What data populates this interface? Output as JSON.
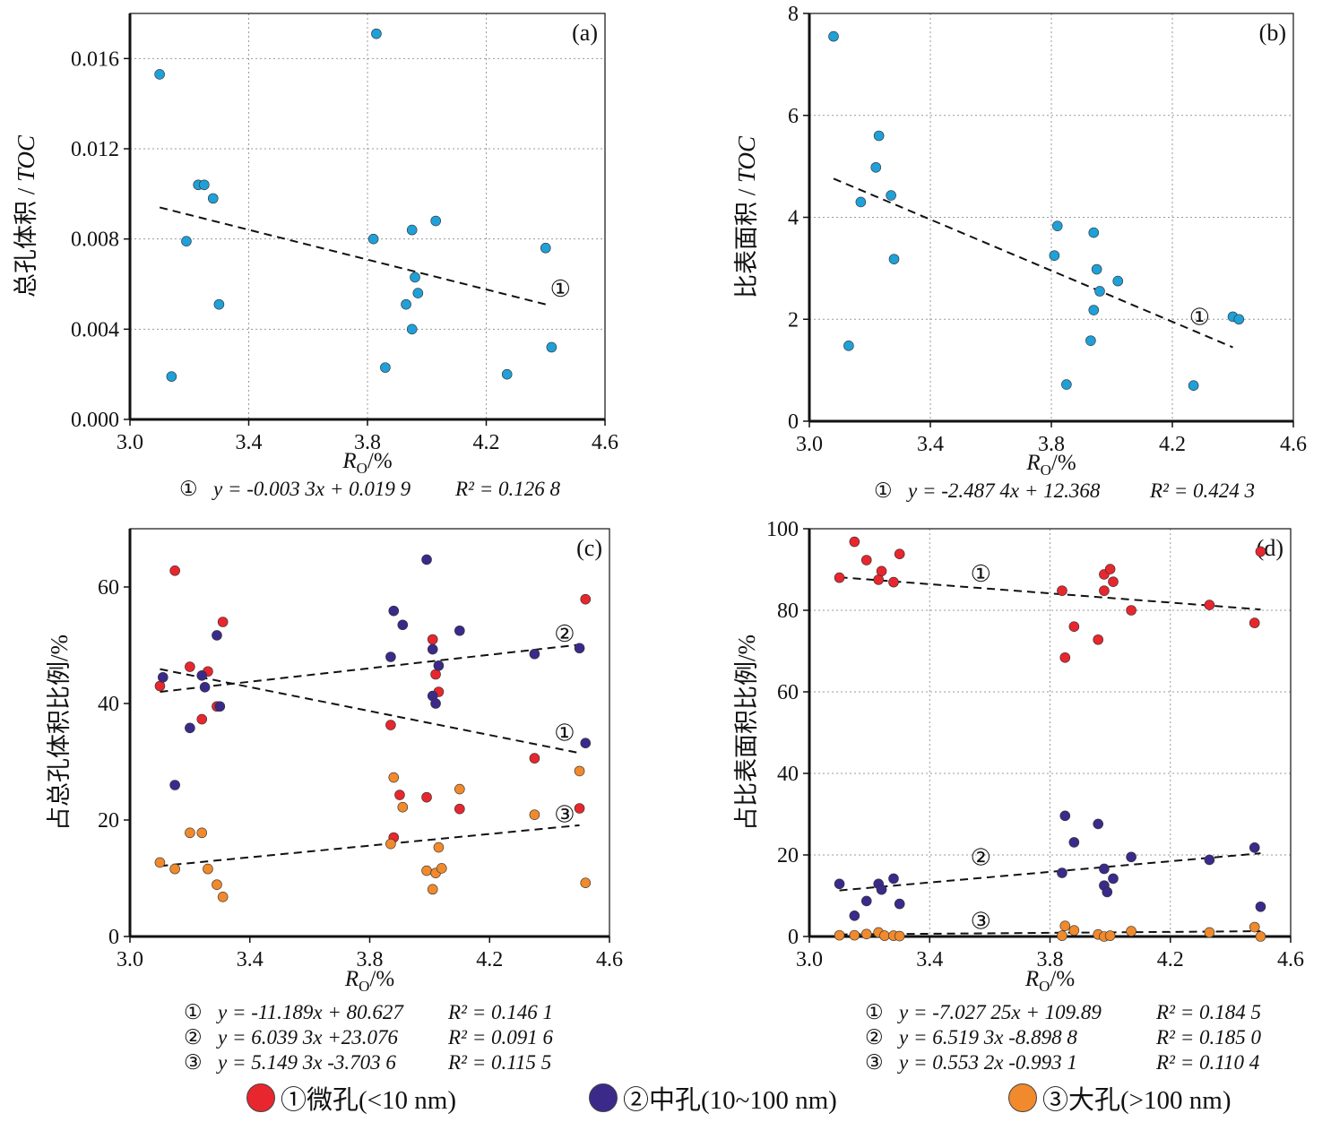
{
  "legend": {
    "items": [
      {
        "label": "①微孔(<10 nm)",
        "color": "#e8262e"
      },
      {
        "label": "②中孔(10~100 nm)",
        "color": "#3b2a8a"
      },
      {
        "label": "③大孔(>100 nm)",
        "color": "#f08a2c"
      }
    ]
  },
  "chart_data": [
    {
      "id": "a",
      "type": "scatter",
      "panel_label": "(a)",
      "xlabel": "R",
      "xlabel_sub": "O",
      "xlabel_suffix": "/%",
      "ylabel": "总孔体积 / ",
      "ylabel_italic": "TOC",
      "xlim": [
        3.0,
        4.6
      ],
      "ylim": [
        0.0,
        0.018
      ],
      "xticks": [
        "3.0",
        "3.4",
        "3.8",
        "4.2",
        "4.6"
      ],
      "yticks": [
        {
          "v": 0.0,
          "label": "0.000"
        },
        {
          "v": 0.004,
          "label": "0.004"
        },
        {
          "v": 0.008,
          "label": "0.008"
        },
        {
          "v": 0.012,
          "label": "0.012"
        },
        {
          "v": 0.016,
          "label": "0.016"
        }
      ],
      "grid": true,
      "series": [
        {
          "color": "#1fa0d8",
          "points": [
            [
              3.1,
              0.0153
            ],
            [
              3.14,
              0.0019
            ],
            [
              3.19,
              0.0079
            ],
            [
              3.23,
              0.0104
            ],
            [
              3.25,
              0.0104
            ],
            [
              3.28,
              0.0098
            ],
            [
              3.3,
              0.0051
            ],
            [
              3.82,
              0.008
            ],
            [
              3.83,
              0.0171
            ],
            [
              3.86,
              0.0023
            ],
            [
              3.93,
              0.0051
            ],
            [
              3.95,
              0.004
            ],
            [
              3.95,
              0.0084
            ],
            [
              3.96,
              0.0063
            ],
            [
              3.97,
              0.0056
            ],
            [
              4.03,
              0.0088
            ],
            [
              4.27,
              0.002
            ],
            [
              4.4,
              0.0076
            ],
            [
              4.42,
              0.0032
            ]
          ]
        }
      ],
      "fits": [
        {
          "label": "①",
          "x": [
            3.1,
            4.4
          ],
          "y": [
            0.0094,
            0.0051
          ],
          "label_at": [
            4.45,
            0.0058
          ]
        }
      ],
      "equations": [
        {
          "n": "①",
          "text": "y = -0.003 3x + 0.019 9",
          "r2": "R² = 0.126 8"
        }
      ]
    },
    {
      "id": "b",
      "type": "scatter",
      "panel_label": "(b)",
      "xlabel": "R",
      "xlabel_sub": "O",
      "xlabel_suffix": "/%",
      "ylabel": "比表面积 / ",
      "ylabel_italic": "TOC",
      "xlim": [
        3.0,
        4.6
      ],
      "ylim": [
        0,
        8
      ],
      "xticks": [
        "3.0",
        "3.4",
        "3.8",
        "4.2",
        "4.6"
      ],
      "yticks": [
        {
          "v": 0,
          "label": "0"
        },
        {
          "v": 2,
          "label": "2"
        },
        {
          "v": 4,
          "label": "4"
        },
        {
          "v": 6,
          "label": "6"
        },
        {
          "v": 8,
          "label": "8"
        }
      ],
      "grid": true,
      "series": [
        {
          "color": "#1fa0d8",
          "points": [
            [
              3.08,
              7.55
            ],
            [
              3.13,
              1.48
            ],
            [
              3.17,
              4.3
            ],
            [
              3.22,
              4.98
            ],
            [
              3.23,
              5.6
            ],
            [
              3.27,
              4.43
            ],
            [
              3.28,
              3.18
            ],
            [
              3.81,
              3.25
            ],
            [
              3.82,
              3.83
            ],
            [
              3.85,
              0.72
            ],
            [
              3.93,
              1.58
            ],
            [
              3.94,
              2.18
            ],
            [
              3.94,
              3.7
            ],
            [
              3.95,
              2.98
            ],
            [
              3.96,
              2.55
            ],
            [
              4.02,
              2.75
            ],
            [
              4.27,
              0.7
            ],
            [
              4.4,
              2.05
            ],
            [
              4.42,
              2.0
            ]
          ]
        }
      ],
      "fits": [
        {
          "label": "①",
          "x": [
            3.08,
            4.4
          ],
          "y": [
            4.76,
            1.45
          ],
          "label_at": [
            4.29,
            2.05
          ]
        }
      ],
      "equations": [
        {
          "n": "①",
          "text": "y = -2.487 4x + 12.368",
          "r2": "R² = 0.424 3"
        }
      ]
    },
    {
      "id": "c",
      "type": "scatter",
      "panel_label": "(c)",
      "xlabel": "R",
      "xlabel_sub": "O",
      "xlabel_suffix": "/%",
      "ylabel": "占总孔体积比例/%",
      "ylabel_italic": "",
      "xlim": [
        3.0,
        4.6
      ],
      "ylim": [
        0,
        70
      ],
      "xticks": [
        "3.0",
        "3.4",
        "3.8",
        "4.2",
        "4.6"
      ],
      "yticks": [
        {
          "v": 0,
          "label": "0"
        },
        {
          "v": 20,
          "label": "20"
        },
        {
          "v": 40,
          "label": "40"
        },
        {
          "v": 60,
          "label": "60"
        }
      ],
      "grid": false,
      "series": [
        {
          "name": "①微孔(<10 nm)",
          "color": "#e8262e",
          "points": [
            [
              3.1,
              43.0
            ],
            [
              3.15,
              62.8
            ],
            [
              3.2,
              46.3
            ],
            [
              3.24,
              37.3
            ],
            [
              3.26,
              45.5
            ],
            [
              3.29,
              39.5
            ],
            [
              3.31,
              54.0
            ],
            [
              3.87,
              36.3
            ],
            [
              3.88,
              17.0
            ],
            [
              3.9,
              24.3
            ],
            [
              3.99,
              23.9
            ],
            [
              4.01,
              51.0
            ],
            [
              4.02,
              45.0
            ],
            [
              4.03,
              42.0
            ],
            [
              4.1,
              21.9
            ],
            [
              4.35,
              30.6
            ],
            [
              4.5,
              22.0
            ],
            [
              4.52,
              57.9
            ]
          ]
        },
        {
          "name": "②中孔(10~100 nm)",
          "color": "#3b2a8a",
          "points": [
            [
              3.11,
              44.5
            ],
            [
              3.15,
              26.0
            ],
            [
              3.2,
              35.8
            ],
            [
              3.24,
              44.8
            ],
            [
              3.25,
              42.8
            ],
            [
              3.29,
              51.7
            ],
            [
              3.3,
              39.5
            ],
            [
              3.87,
              48.0
            ],
            [
              3.88,
              55.9
            ],
            [
              3.91,
              53.5
            ],
            [
              3.99,
              64.7
            ],
            [
              4.01,
              49.3
            ],
            [
              4.01,
              41.3
            ],
            [
              4.02,
              40.0
            ],
            [
              4.03,
              46.5
            ],
            [
              4.1,
              52.5
            ],
            [
              4.35,
              48.5
            ],
            [
              4.5,
              49.5
            ],
            [
              4.52,
              33.2
            ]
          ]
        },
        {
          "name": "③大孔(>100 nm)",
          "color": "#f08a2c",
          "points": [
            [
              3.1,
              12.7
            ],
            [
              3.15,
              11.6
            ],
            [
              3.2,
              17.8
            ],
            [
              3.24,
              17.8
            ],
            [
              3.26,
              11.6
            ],
            [
              3.29,
              8.9
            ],
            [
              3.31,
              6.8
            ],
            [
              3.87,
              15.9
            ],
            [
              3.88,
              27.3
            ],
            [
              3.91,
              22.2
            ],
            [
              3.99,
              11.3
            ],
            [
              4.01,
              8.1
            ],
            [
              4.02,
              10.9
            ],
            [
              4.03,
              15.3
            ],
            [
              4.04,
              11.7
            ],
            [
              4.1,
              25.3
            ],
            [
              4.35,
              20.9
            ],
            [
              4.5,
              28.4
            ],
            [
              4.52,
              9.2
            ]
          ]
        }
      ],
      "fits": [
        {
          "label": "②",
          "x": [
            3.1,
            4.5
          ],
          "y": [
            42.0,
            50.1
          ],
          "label_at": [
            4.45,
            52.0
          ]
        },
        {
          "label": "①",
          "x": [
            3.1,
            4.5
          ],
          "y": [
            45.9,
            31.5
          ],
          "label_at": [
            4.45,
            35.0
          ]
        },
        {
          "label": "③",
          "x": [
            3.1,
            4.5
          ],
          "y": [
            12.1,
            19.1
          ],
          "label_at": [
            4.45,
            21.0
          ]
        }
      ],
      "equations": [
        {
          "n": "①",
          "text": "y = -11.189x + 80.627",
          "r2": "R² = 0.146 1"
        },
        {
          "n": "②",
          "text": "y = 6.039 3x +23.076",
          "r2": "R² = 0.091 6"
        },
        {
          "n": "③",
          "text": "y = 5.149 3x -3.703 6",
          "r2": "R² = 0.115 5"
        }
      ]
    },
    {
      "id": "d",
      "type": "scatter",
      "panel_label": "(d)",
      "xlabel": "R",
      "xlabel_sub": "O",
      "xlabel_suffix": "/%",
      "ylabel": "占比表面积比例/%",
      "ylabel_italic": "",
      "xlim": [
        3.0,
        4.6
      ],
      "ylim": [
        0,
        100
      ],
      "xticks": [
        "3.0",
        "3.4",
        "3.8",
        "4.2",
        "4.6"
      ],
      "yticks": [
        {
          "v": 0,
          "label": "0"
        },
        {
          "v": 20,
          "label": "20"
        },
        {
          "v": 40,
          "label": "40"
        },
        {
          "v": 60,
          "label": "60"
        },
        {
          "v": 80,
          "label": "80"
        },
        {
          "v": 100,
          "label": "100"
        }
      ],
      "grid": true,
      "series": [
        {
          "name": "①微孔(<10 nm)",
          "color": "#e8262e",
          "points": [
            [
              3.1,
              88.0
            ],
            [
              3.15,
              96.8
            ],
            [
              3.19,
              92.3
            ],
            [
              3.23,
              87.5
            ],
            [
              3.24,
              89.6
            ],
            [
              3.28,
              86.9
            ],
            [
              3.3,
              93.8
            ],
            [
              3.84,
              84.8
            ],
            [
              3.85,
              68.4
            ],
            [
              3.88,
              76.0
            ],
            [
              3.96,
              72.8
            ],
            [
              3.98,
              88.8
            ],
            [
              3.98,
              84.8
            ],
            [
              4.0,
              90.1
            ],
            [
              4.01,
              87.0
            ],
            [
              4.07,
              80.0
            ],
            [
              4.33,
              81.3
            ],
            [
              4.48,
              76.9
            ],
            [
              4.5,
              94.4
            ]
          ]
        },
        {
          "name": "②中孔(10~100 nm)",
          "color": "#3b2a8a",
          "points": [
            [
              3.1,
              12.9
            ],
            [
              3.15,
              5.1
            ],
            [
              3.19,
              8.7
            ],
            [
              3.23,
              12.9
            ],
            [
              3.24,
              11.5
            ],
            [
              3.28,
              14.2
            ],
            [
              3.3,
              8.0
            ],
            [
              3.84,
              15.6
            ],
            [
              3.85,
              29.6
            ],
            [
              3.88,
              23.1
            ],
            [
              3.96,
              27.6
            ],
            [
              3.98,
              16.6
            ],
            [
              3.98,
              12.5
            ],
            [
              3.99,
              10.9
            ],
            [
              4.01,
              14.2
            ],
            [
              4.07,
              19.5
            ],
            [
              4.33,
              18.8
            ],
            [
              4.48,
              21.8
            ],
            [
              4.5,
              7.3
            ]
          ]
        },
        {
          "name": "③大孔(>100 nm)",
          "color": "#f08a2c",
          "points": [
            [
              3.1,
              0.3
            ],
            [
              3.15,
              0.3
            ],
            [
              3.19,
              0.6
            ],
            [
              3.23,
              1.0
            ],
            [
              3.25,
              0.2
            ],
            [
              3.28,
              0.2
            ],
            [
              3.3,
              0.1
            ],
            [
              3.84,
              0.2
            ],
            [
              3.85,
              2.6
            ],
            [
              3.88,
              1.5
            ],
            [
              3.96,
              0.5
            ],
            [
              3.98,
              0.0
            ],
            [
              4.0,
              0.2
            ],
            [
              4.07,
              1.3
            ],
            [
              4.33,
              1.0
            ],
            [
              4.48,
              2.3
            ],
            [
              4.5,
              0.0
            ]
          ]
        }
      ],
      "fits": [
        {
          "label": "①",
          "x": [
            3.1,
            4.5
          ],
          "y": [
            88.1,
            80.2
          ],
          "label_at": [
            3.57,
            89.0
          ]
        },
        {
          "label": "②",
          "x": [
            3.1,
            4.5
          ],
          "y": [
            11.3,
            20.4
          ],
          "label_at": [
            3.57,
            19.5
          ]
        },
        {
          "label": "③",
          "x": [
            3.1,
            4.5
          ],
          "y": [
            0.5,
            1.3
          ],
          "label_at": [
            3.57,
            3.8
          ]
        }
      ],
      "equations": [
        {
          "n": "①",
          "text": "y = -7.027 25x + 109.89",
          "r2": "R² = 0.184 5"
        },
        {
          "n": "②",
          "text": "y = 6.519 3x -8.898 8",
          "r2": "R² = 0.185 0"
        },
        {
          "n": "③",
          "text": "y = 0.553 2x -0.993 1",
          "r2": "R² = 0.110 4"
        }
      ]
    }
  ]
}
